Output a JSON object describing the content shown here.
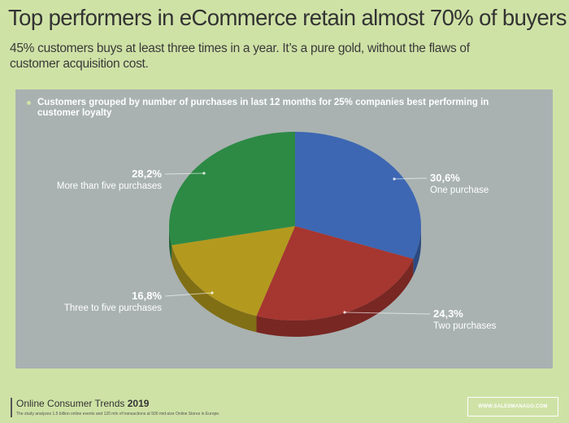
{
  "header": {
    "title": "Top performers in eCommerce retain almost 70% of buyers",
    "subtitle": "45% customers buys at least three times in a year. It’s a pure gold, without the flaws of customer acquisition cost."
  },
  "panel": {
    "caption": "Customers grouped by number of purchases in last 12 months for 25% companies best performing in customer loyalty"
  },
  "chart_data": {
    "type": "pie",
    "title": "Customers grouped by number of purchases in last 12 months for 25% companies best performing in customer loyalty",
    "categories": [
      "One purchase",
      "Two purchases",
      "Three to five purchases",
      "More than five purchases"
    ],
    "values": [
      30.6,
      24.3,
      16.8,
      28.2
    ],
    "value_labels": [
      "30,6%",
      "24,3%",
      "16,8%",
      "28,2%"
    ],
    "colors": [
      "#3d67b3",
      "#a63630",
      "#b39a1e",
      "#2d8a45"
    ],
    "style": "3d"
  },
  "footer": {
    "title_prefix": "Online Consumer Trends",
    "title_year": "2019",
    "note": "The study analyzes 1.5 billion online events and 120 mln of transactions at 500 mid-size Online Stores in Europe.",
    "badge": "WWW.SALESMANAGO.COM"
  }
}
